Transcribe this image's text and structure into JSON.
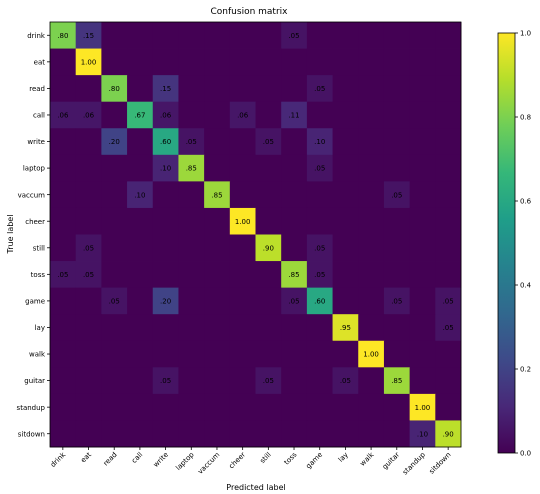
{
  "chart_data": {
    "type": "heatmap",
    "title": "Confusion matrix",
    "xlabel": "Predicted label",
    "ylabel": "True label",
    "categories": [
      "drink",
      "eat",
      "read",
      "call",
      "write",
      "laptop",
      "vaccum",
      "cheer",
      "still",
      "toss",
      "game",
      "lay",
      "walk",
      "guitar",
      "standup",
      "sitdown"
    ],
    "values": [
      [
        0.8,
        0.15,
        0,
        0,
        0,
        0,
        0,
        0,
        0,
        0.05,
        0,
        0,
        0,
        0,
        0,
        0
      ],
      [
        0,
        1.0,
        0,
        0,
        0,
        0,
        0,
        0,
        0,
        0,
        0,
        0,
        0,
        0,
        0,
        0
      ],
      [
        0,
        0,
        0.8,
        0,
        0.15,
        0,
        0,
        0,
        0,
        0,
        0.05,
        0,
        0,
        0,
        0,
        0
      ],
      [
        0.06,
        0.06,
        0,
        0.67,
        0.06,
        0,
        0,
        0.06,
        0,
        0.11,
        0,
        0,
        0,
        0,
        0,
        0
      ],
      [
        0,
        0,
        0.2,
        0,
        0.6,
        0.05,
        0,
        0,
        0.05,
        0,
        0.1,
        0,
        0,
        0,
        0,
        0
      ],
      [
        0,
        0,
        0,
        0,
        0.1,
        0.85,
        0,
        0,
        0,
        0,
        0.05,
        0,
        0,
        0,
        0,
        0
      ],
      [
        0,
        0,
        0,
        0.1,
        0,
        0,
        0.85,
        0,
        0,
        0,
        0,
        0,
        0,
        0.05,
        0,
        0
      ],
      [
        0,
        0,
        0,
        0,
        0,
        0,
        0,
        1.0,
        0,
        0,
        0,
        0,
        0,
        0,
        0,
        0
      ],
      [
        0,
        0.05,
        0,
        0,
        0,
        0,
        0,
        0,
        0.9,
        0,
        0.05,
        0,
        0,
        0,
        0,
        0
      ],
      [
        0.05,
        0.05,
        0,
        0,
        0,
        0,
        0,
        0,
        0,
        0.85,
        0.05,
        0,
        0,
        0,
        0,
        0
      ],
      [
        0,
        0,
        0.05,
        0,
        0.2,
        0,
        0,
        0,
        0,
        0.05,
        0.6,
        0,
        0,
        0.05,
        0,
        0.05
      ],
      [
        0,
        0,
        0,
        0,
        0,
        0,
        0,
        0,
        0,
        0,
        0,
        0.95,
        0,
        0,
        0,
        0.05
      ],
      [
        0,
        0,
        0,
        0,
        0,
        0,
        0,
        0,
        0,
        0,
        0,
        0,
        1.0,
        0,
        0,
        0
      ],
      [
        0,
        0,
        0,
        0,
        0.05,
        0,
        0,
        0,
        0.05,
        0,
        0,
        0.05,
        0,
        0.85,
        0,
        0
      ],
      [
        0,
        0,
        0,
        0,
        0,
        0,
        0,
        0,
        0,
        0,
        0,
        0,
        0,
        0,
        1.0,
        0
      ],
      [
        0,
        0,
        0,
        0,
        0,
        0,
        0,
        0,
        0,
        0,
        0,
        0,
        0,
        0,
        0.1,
        0.9
      ]
    ],
    "zlim": [
      0.0,
      1.0
    ],
    "colorbar_ticks": [
      "0.0",
      "0.2",
      "0.4",
      "0.6",
      "0.8",
      "1.0"
    ],
    "colormap": [
      "#440154",
      "#482878",
      "#3e4a89",
      "#31688e",
      "#26828e",
      "#1f9e89",
      "#35b779",
      "#6ece58",
      "#b5de2b",
      "#fde725"
    ],
    "grid": false,
    "legend": "colorbar-right"
  }
}
